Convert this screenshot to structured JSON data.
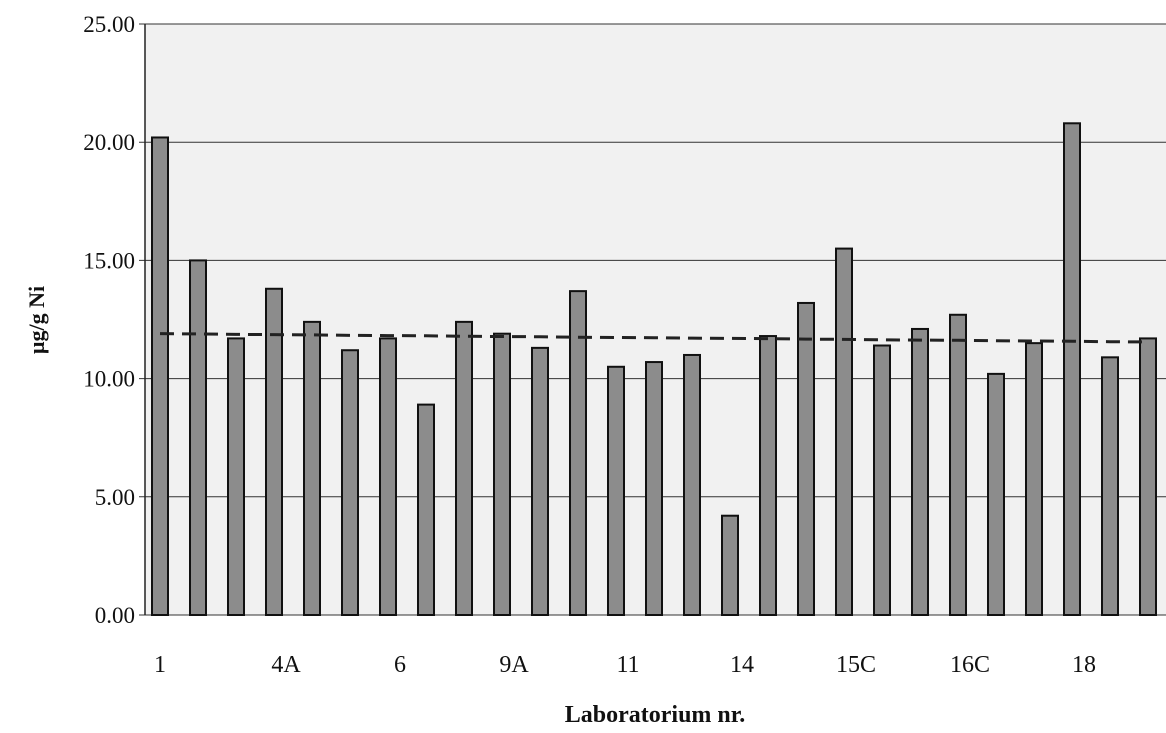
{
  "chart_data": {
    "type": "bar",
    "y_label": "µg/g Ni",
    "x_label": "Laboratorium nr.",
    "categories": [
      "1",
      null,
      null,
      "4A",
      null,
      null,
      "6",
      null,
      null,
      "9A",
      null,
      null,
      "11",
      null,
      null,
      "14",
      null,
      null,
      "15C",
      null,
      null,
      "16C",
      null,
      null,
      "18",
      null,
      null
    ],
    "values": [
      20.2,
      15.0,
      11.7,
      13.8,
      12.4,
      11.2,
      11.7,
      8.9,
      12.4,
      11.9,
      11.3,
      13.7,
      10.5,
      10.7,
      11.0,
      4.2,
      11.8,
      13.2,
      15.5,
      11.4,
      12.1,
      12.7,
      10.2,
      11.5,
      20.8,
      10.9,
      11.7
    ],
    "color": "#8c8c8c",
    "reference_line": {
      "color": "#222222",
      "values": [
        11.9,
        11.89,
        11.87,
        11.86,
        11.85,
        11.83,
        11.82,
        11.81,
        11.79,
        11.78,
        11.77,
        11.75,
        11.74,
        11.73,
        11.71,
        11.7,
        11.69,
        11.67,
        11.66,
        11.64,
        11.63,
        11.62,
        11.6,
        11.59,
        11.58,
        11.56,
        11.55
      ]
    },
    "ylim": [
      0,
      25
    ],
    "yticks": [
      {
        "value": 0,
        "label": "0.00"
      },
      {
        "value": 5,
        "label": "5.00"
      },
      {
        "value": 10,
        "label": "10.00"
      },
      {
        "value": 15,
        "label": "15.00"
      },
      {
        "value": 20,
        "label": "20.00"
      },
      {
        "value": 25,
        "label": "25.00"
      }
    ],
    "grid": true
  }
}
